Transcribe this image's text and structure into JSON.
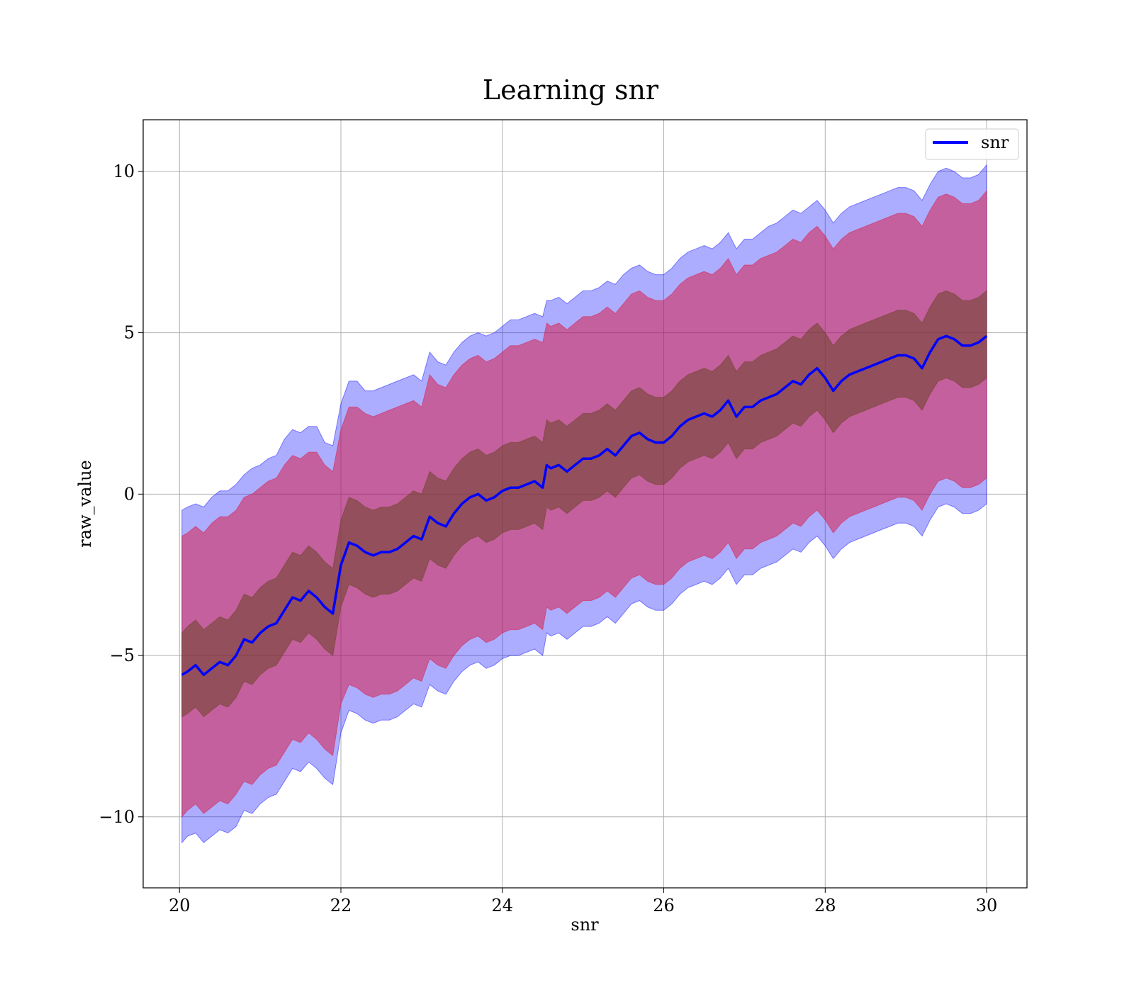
{
  "chart_data": {
    "type": "line",
    "title": "Learning snr",
    "xlabel": "snr",
    "ylabel": "raw_value",
    "xlim": [
      19.55,
      30.5
    ],
    "ylim": [
      -12.2,
      11.6
    ],
    "xticks": [
      20,
      22,
      24,
      26,
      28,
      30
    ],
    "yticks": [
      -10,
      -5,
      0,
      5,
      10
    ],
    "xtick_labels": [
      "20",
      "22",
      "24",
      "26",
      "28",
      "30"
    ],
    "ytick_labels": [
      "−10",
      "−5",
      "0",
      "5",
      "10"
    ],
    "grid": true,
    "legend": {
      "position": "top-right",
      "entries": [
        "snr"
      ]
    },
    "colors": {
      "line": "#0000ff",
      "outer_band": "#0000ff",
      "middle_band": "#dc143c",
      "inner_band": "#6b4226"
    },
    "series": [
      {
        "name": "snr",
        "x": [
          20.03,
          20.1,
          20.2,
          20.3,
          20.4,
          20.5,
          20.6,
          20.7,
          20.8,
          20.9,
          21.0,
          21.1,
          21.2,
          21.3,
          21.4,
          21.5,
          21.6,
          21.7,
          21.8,
          21.9,
          22.0,
          22.1,
          22.2,
          22.3,
          22.4,
          22.5,
          22.6,
          22.7,
          22.8,
          22.9,
          23.0,
          23.1,
          23.2,
          23.3,
          23.4,
          23.5,
          23.6,
          23.7,
          23.8,
          23.9,
          24.0,
          24.1,
          24.2,
          24.3,
          24.4,
          24.5,
          24.55,
          24.6,
          24.7,
          24.8,
          24.9,
          25.0,
          25.1,
          25.2,
          25.3,
          25.4,
          25.5,
          25.6,
          25.7,
          25.8,
          25.9,
          26.0,
          26.1,
          26.2,
          26.3,
          26.4,
          26.5,
          26.6,
          26.7,
          26.8,
          26.9,
          27.0,
          27.1,
          27.2,
          27.3,
          27.4,
          27.5,
          27.6,
          27.7,
          27.8,
          27.9,
          28.0,
          28.1,
          28.2,
          28.3,
          28.4,
          28.5,
          28.6,
          28.7,
          28.8,
          28.9,
          29.0,
          29.1,
          29.2,
          29.3,
          29.4,
          29.5,
          29.6,
          29.7,
          29.8,
          29.9,
          30.0
        ],
        "mean": [
          -5.6,
          -5.5,
          -5.3,
          -5.6,
          -5.4,
          -5.2,
          -5.3,
          -5.0,
          -4.5,
          -4.6,
          -4.3,
          -4.1,
          -4.0,
          -3.6,
          -3.2,
          -3.3,
          -3.0,
          -3.2,
          -3.5,
          -3.7,
          -2.2,
          -1.5,
          -1.6,
          -1.8,
          -1.9,
          -1.8,
          -1.8,
          -1.7,
          -1.5,
          -1.3,
          -1.4,
          -0.7,
          -0.9,
          -1.0,
          -0.6,
          -0.3,
          -0.1,
          0.0,
          -0.2,
          -0.1,
          0.1,
          0.2,
          0.2,
          0.3,
          0.4,
          0.2,
          0.9,
          0.8,
          0.9,
          0.7,
          0.9,
          1.1,
          1.1,
          1.2,
          1.4,
          1.2,
          1.5,
          1.8,
          1.9,
          1.7,
          1.6,
          1.6,
          1.8,
          2.1,
          2.3,
          2.4,
          2.5,
          2.4,
          2.6,
          2.9,
          2.4,
          2.7,
          2.7,
          2.9,
          3.0,
          3.1,
          3.3,
          3.5,
          3.4,
          3.7,
          3.9,
          3.6,
          3.2,
          3.5,
          3.7,
          3.8,
          3.9,
          4.0,
          4.1,
          4.2,
          4.3,
          4.3,
          4.2,
          3.9,
          4.4,
          4.8,
          4.9,
          4.8,
          4.6,
          4.6,
          4.7,
          4.9
        ],
        "outer_upper": [
          -0.5,
          -0.4,
          -0.3,
          -0.4,
          -0.1,
          0.1,
          0.1,
          0.3,
          0.6,
          0.8,
          0.9,
          1.1,
          1.2,
          1.7,
          2.0,
          1.9,
          2.1,
          2.1,
          1.6,
          1.5,
          2.8,
          3.5,
          3.5,
          3.2,
          3.2,
          3.3,
          3.4,
          3.5,
          3.6,
          3.7,
          3.5,
          4.4,
          4.1,
          4.0,
          4.4,
          4.7,
          4.9,
          5.0,
          4.9,
          5.0,
          5.2,
          5.4,
          5.4,
          5.5,
          5.6,
          5.5,
          6.0,
          6.0,
          6.1,
          5.9,
          6.1,
          6.3,
          6.3,
          6.4,
          6.6,
          6.5,
          6.8,
          7.0,
          7.1,
          6.9,
          6.8,
          6.8,
          7.0,
          7.3,
          7.5,
          7.6,
          7.7,
          7.6,
          7.8,
          8.1,
          7.6,
          7.9,
          7.9,
          8.1,
          8.3,
          8.4,
          8.6,
          8.8,
          8.7,
          8.9,
          9.1,
          8.8,
          8.4,
          8.7,
          8.9,
          9.0,
          9.1,
          9.2,
          9.3,
          9.4,
          9.5,
          9.5,
          9.4,
          9.1,
          9.6,
          10.0,
          10.1,
          10.0,
          9.8,
          9.8,
          9.9,
          10.2
        ],
        "outer_lower": [
          -10.8,
          -10.6,
          -10.5,
          -10.8,
          -10.6,
          -10.4,
          -10.5,
          -10.3,
          -9.8,
          -9.9,
          -9.6,
          -9.4,
          -9.3,
          -8.9,
          -8.5,
          -8.6,
          -8.3,
          -8.5,
          -8.8,
          -9.0,
          -7.4,
          -6.7,
          -6.8,
          -7.0,
          -7.1,
          -7.0,
          -7.0,
          -6.9,
          -6.7,
          -6.5,
          -6.6,
          -5.9,
          -6.1,
          -6.2,
          -5.8,
          -5.5,
          -5.3,
          -5.2,
          -5.4,
          -5.3,
          -5.1,
          -5.0,
          -5.0,
          -4.9,
          -4.8,
          -5.0,
          -4.3,
          -4.4,
          -4.3,
          -4.5,
          -4.3,
          -4.1,
          -4.1,
          -4.0,
          -3.8,
          -4.0,
          -3.7,
          -3.4,
          -3.3,
          -3.5,
          -3.6,
          -3.6,
          -3.4,
          -3.1,
          -2.9,
          -2.8,
          -2.7,
          -2.8,
          -2.6,
          -2.3,
          -2.8,
          -2.5,
          -2.5,
          -2.3,
          -2.2,
          -2.1,
          -1.9,
          -1.7,
          -1.8,
          -1.5,
          -1.3,
          -1.6,
          -2.0,
          -1.7,
          -1.5,
          -1.4,
          -1.3,
          -1.2,
          -1.1,
          -1.0,
          -0.9,
          -0.9,
          -1.0,
          -1.3,
          -0.8,
          -0.4,
          -0.3,
          -0.4,
          -0.6,
          -0.6,
          -0.5,
          -0.3
        ],
        "middle_upper": [
          -1.3,
          -1.2,
          -1.0,
          -1.2,
          -0.9,
          -0.7,
          -0.7,
          -0.5,
          -0.1,
          0.0,
          0.2,
          0.4,
          0.5,
          0.9,
          1.2,
          1.1,
          1.3,
          1.3,
          0.9,
          0.7,
          2.0,
          2.7,
          2.7,
          2.5,
          2.4,
          2.5,
          2.6,
          2.7,
          2.8,
          2.9,
          2.7,
          3.7,
          3.4,
          3.3,
          3.7,
          4.0,
          4.2,
          4.3,
          4.1,
          4.2,
          4.4,
          4.6,
          4.6,
          4.7,
          4.8,
          4.7,
          5.3,
          5.2,
          5.3,
          5.1,
          5.3,
          5.5,
          5.5,
          5.6,
          5.8,
          5.6,
          5.9,
          6.2,
          6.3,
          6.1,
          6.0,
          6.0,
          6.2,
          6.5,
          6.7,
          6.8,
          6.9,
          6.8,
          7.0,
          7.3,
          6.8,
          7.1,
          7.1,
          7.3,
          7.4,
          7.5,
          7.7,
          7.9,
          7.8,
          8.1,
          8.3,
          8.0,
          7.6,
          7.9,
          8.1,
          8.2,
          8.3,
          8.4,
          8.5,
          8.6,
          8.7,
          8.7,
          8.6,
          8.3,
          8.8,
          9.2,
          9.3,
          9.2,
          9.0,
          9.0,
          9.1,
          9.4
        ],
        "middle_lower": [
          -10.0,
          -9.8,
          -9.6,
          -9.9,
          -9.7,
          -9.5,
          -9.6,
          -9.3,
          -8.9,
          -9.0,
          -8.7,
          -8.5,
          -8.4,
          -8.0,
          -7.6,
          -7.7,
          -7.4,
          -7.6,
          -7.9,
          -8.1,
          -6.5,
          -5.9,
          -6.0,
          -6.2,
          -6.3,
          -6.2,
          -6.2,
          -6.1,
          -5.9,
          -5.7,
          -5.8,
          -5.1,
          -5.3,
          -5.4,
          -5.0,
          -4.7,
          -4.5,
          -4.4,
          -4.6,
          -4.5,
          -4.3,
          -4.2,
          -4.2,
          -4.1,
          -4.0,
          -4.2,
          -3.5,
          -3.6,
          -3.5,
          -3.7,
          -3.5,
          -3.3,
          -3.3,
          -3.2,
          -3.0,
          -3.2,
          -2.9,
          -2.6,
          -2.5,
          -2.7,
          -2.8,
          -2.8,
          -2.6,
          -2.3,
          -2.1,
          -2.0,
          -1.9,
          -2.0,
          -1.8,
          -1.5,
          -2.0,
          -1.7,
          -1.7,
          -1.5,
          -1.4,
          -1.3,
          -1.1,
          -0.9,
          -1.0,
          -0.7,
          -0.5,
          -0.8,
          -1.2,
          -0.9,
          -0.7,
          -0.6,
          -0.5,
          -0.4,
          -0.3,
          -0.2,
          -0.1,
          -0.1,
          -0.2,
          -0.5,
          0.0,
          0.4,
          0.5,
          0.4,
          0.2,
          0.2,
          0.3,
          0.5
        ],
        "inner_upper": [
          -4.3,
          -4.1,
          -3.9,
          -4.2,
          -4.0,
          -3.8,
          -3.9,
          -3.6,
          -3.1,
          -3.2,
          -2.9,
          -2.7,
          -2.6,
          -2.2,
          -1.8,
          -1.9,
          -1.6,
          -1.8,
          -2.1,
          -2.3,
          -0.8,
          -0.1,
          -0.2,
          -0.4,
          -0.5,
          -0.4,
          -0.4,
          -0.3,
          -0.1,
          0.1,
          0.0,
          0.7,
          0.5,
          0.4,
          0.8,
          1.1,
          1.3,
          1.4,
          1.2,
          1.3,
          1.5,
          1.6,
          1.6,
          1.7,
          1.8,
          1.6,
          2.3,
          2.2,
          2.3,
          2.1,
          2.3,
          2.5,
          2.5,
          2.6,
          2.8,
          2.6,
          2.9,
          3.2,
          3.3,
          3.1,
          3.0,
          3.0,
          3.2,
          3.5,
          3.7,
          3.8,
          3.9,
          3.8,
          4.0,
          4.3,
          3.8,
          4.1,
          4.1,
          4.3,
          4.4,
          4.5,
          4.7,
          4.9,
          4.8,
          5.1,
          5.3,
          5.0,
          4.6,
          4.9,
          5.1,
          5.2,
          5.3,
          5.4,
          5.5,
          5.6,
          5.7,
          5.7,
          5.6,
          5.3,
          5.8,
          6.2,
          6.3,
          6.2,
          6.0,
          6.0,
          6.1,
          6.3
        ],
        "inner_lower": [
          -6.9,
          -6.8,
          -6.6,
          -6.9,
          -6.7,
          -6.5,
          -6.6,
          -6.3,
          -5.8,
          -5.9,
          -5.6,
          -5.4,
          -5.3,
          -4.9,
          -4.5,
          -4.6,
          -4.3,
          -4.5,
          -4.8,
          -5.0,
          -3.5,
          -2.8,
          -2.9,
          -3.1,
          -3.2,
          -3.1,
          -3.1,
          -3.0,
          -2.8,
          -2.6,
          -2.7,
          -2.0,
          -2.2,
          -2.3,
          -1.9,
          -1.6,
          -1.4,
          -1.3,
          -1.5,
          -1.4,
          -1.2,
          -1.1,
          -1.1,
          -1.0,
          -0.9,
          -1.1,
          -0.4,
          -0.5,
          -0.4,
          -0.6,
          -0.4,
          -0.2,
          -0.2,
          -0.1,
          0.1,
          -0.1,
          0.2,
          0.5,
          0.6,
          0.4,
          0.3,
          0.3,
          0.5,
          0.8,
          1.0,
          1.1,
          1.2,
          1.1,
          1.3,
          1.6,
          1.1,
          1.4,
          1.4,
          1.6,
          1.7,
          1.8,
          2.0,
          2.2,
          2.1,
          2.4,
          2.6,
          2.3,
          1.9,
          2.2,
          2.4,
          2.5,
          2.6,
          2.7,
          2.8,
          2.9,
          3.0,
          3.0,
          2.9,
          2.6,
          3.1,
          3.5,
          3.6,
          3.5,
          3.3,
          3.3,
          3.4,
          3.6
        ]
      }
    ]
  }
}
